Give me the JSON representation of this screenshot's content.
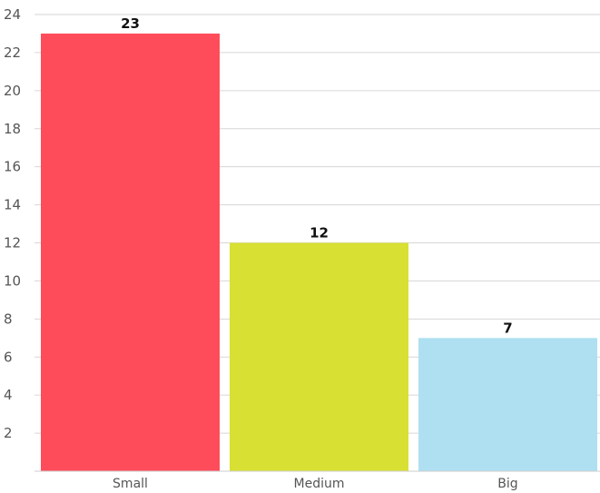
{
  "chart_data": {
    "type": "bar",
    "categories": [
      "Small",
      "Medium",
      "Big"
    ],
    "values": [
      23,
      12,
      7
    ],
    "colors": [
      "#ff4c5b",
      "#d8e033",
      "#aee0f2"
    ],
    "title": "",
    "xlabel": "",
    "ylabel": "",
    "ylim": [
      0,
      24
    ],
    "yticks": [
      2,
      4,
      6,
      8,
      10,
      12,
      14,
      16,
      18,
      20,
      22,
      24
    ],
    "grid": true,
    "data_labels": true,
    "legend": "none"
  }
}
